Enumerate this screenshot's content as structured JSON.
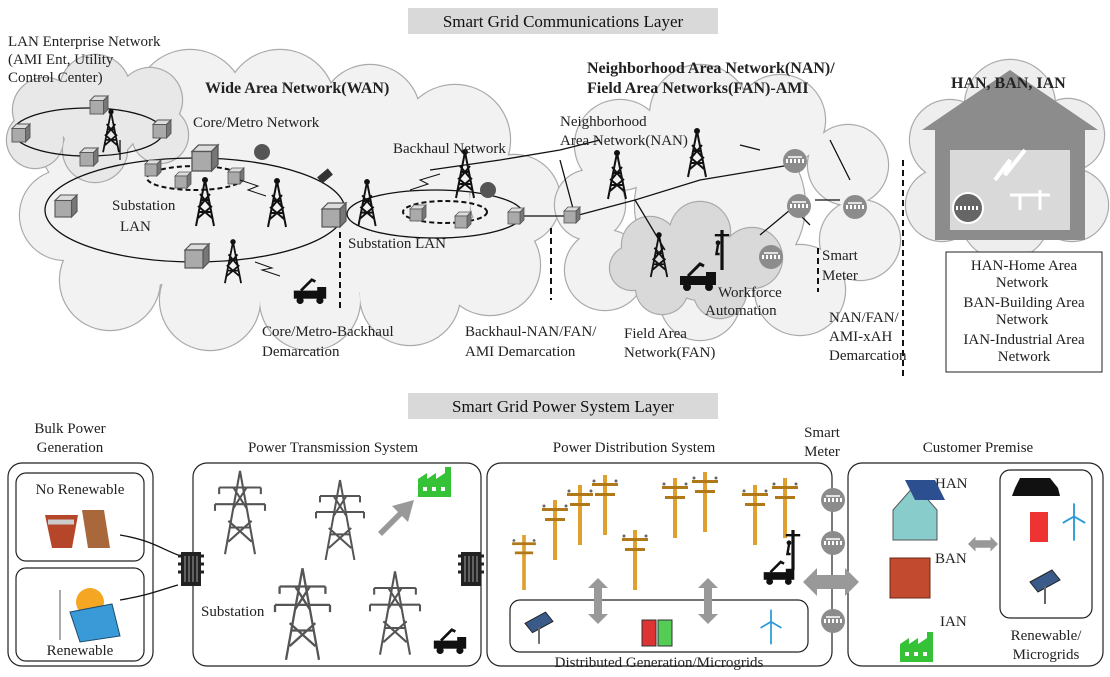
{
  "communications_layer": {
    "title": "Smart Grid Communications Layer",
    "lan_enterprise": [
      "LAN Enterprise Network",
      "(AMI Ent, Utility",
      "Control Center)"
    ],
    "wan": "Wide Area Network(WAN)",
    "nan_fan": [
      "Neighborhood Area Network(NAN)/",
      "Field Area Networks(FAN)-AMI"
    ],
    "han_ban_ian": "HAN, BAN, IAN",
    "core_metro": "Core/Metro Network",
    "backhaul": "Backhaul Network",
    "nan": [
      "Neighborhood",
      "Area Network(NAN)"
    ],
    "substation_lan_left": [
      "Substation",
      "LAN"
    ],
    "substation_lan_mid": "Substation LAN",
    "smart_meter": [
      "Smart",
      "Meter"
    ],
    "workforce": [
      "Workforce",
      "Automation"
    ],
    "demarcations": [
      [
        "Core/Metro-Backhaul",
        "Demarcation"
      ],
      [
        "Backhaul-NAN/FAN/",
        "AMI Demarcation"
      ],
      [
        "NAN/FAN/",
        "AMI-xAH",
        "Demarcation"
      ]
    ],
    "fan": [
      "Field Area",
      "Network(FAN)"
    ],
    "legend": [
      [
        "HAN-Home Area",
        "Network"
      ],
      [
        "BAN-Building Area",
        "Network"
      ],
      [
        "IAN-Industrial Area",
        "Network"
      ]
    ]
  },
  "power_layer": {
    "title": "Smart Grid Power System Layer",
    "bulk": [
      "Bulk Power",
      "Generation"
    ],
    "no_renewable": "No Renewable",
    "renewable": "Renewable",
    "transmission": "Power Transmission System",
    "substation": "Substation",
    "distribution": "Power Distribution System",
    "distributed_generation": "Distributed Generation/Microgrids",
    "smart_meter": [
      "Smart",
      "Meter"
    ],
    "customer": "Customer Premise",
    "han": "HAN",
    "ban": "BAN",
    "ian": "IAN",
    "renewable_microgrids": [
      "Renewable/",
      "Microgrids"
    ]
  }
}
